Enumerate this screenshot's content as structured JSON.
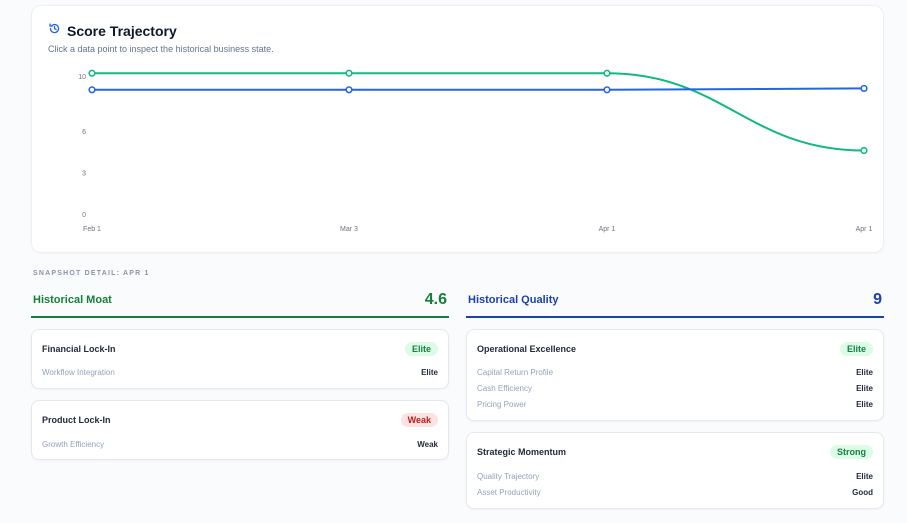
{
  "chart": {
    "title": "Score Trajectory",
    "subtitle": "Click a data point to inspect the historical business state."
  },
  "chart_data": {
    "type": "line",
    "categories": [
      "Feb 1",
      "Mar 3",
      "Apr 1",
      "Apr 1"
    ],
    "yticks": [
      "0",
      "3",
      "6",
      "10"
    ],
    "ylim": [
      0,
      10
    ],
    "grid": false,
    "series": [
      {
        "values": [
          10.2,
          10.2,
          10.2,
          4.6
        ],
        "color": "#10b981"
      },
      {
        "values": [
          9,
          9,
          9,
          9.1
        ],
        "color": "#2563eb"
      }
    ]
  },
  "snapshot": {
    "label": "SNAPSHOT DETAIL: APR 1"
  },
  "moat": {
    "title": "Historical Moat",
    "score": "4.6",
    "color": "#15803d",
    "cards": [
      {
        "title": "Financial Lock-In",
        "badge": "Elite",
        "metrics": [
          {
            "k": "Workflow Integration",
            "v": "Elite"
          }
        ]
      },
      {
        "title": "Product Lock-In",
        "badge": "Weak",
        "metrics": [
          {
            "k": "Growth Efficiency",
            "v": "Weak"
          }
        ]
      }
    ]
  },
  "quality": {
    "title": "Historical Quality",
    "score": "9",
    "color": "#1e40af",
    "cards": [
      {
        "title": "Operational Excellence",
        "badge": "Elite",
        "metrics": [
          {
            "k": "Capital Return Profile",
            "v": "Elite"
          },
          {
            "k": "Cash Efficiency",
            "v": "Elite"
          },
          {
            "k": "Pricing Power",
            "v": "Elite"
          }
        ]
      },
      {
        "title": "Strategic Momentum",
        "badge": "Strong",
        "metrics": [
          {
            "k": "Quality Trajectory",
            "v": "Elite"
          },
          {
            "k": "Asset Productivity",
            "v": "Good"
          }
        ]
      }
    ]
  }
}
